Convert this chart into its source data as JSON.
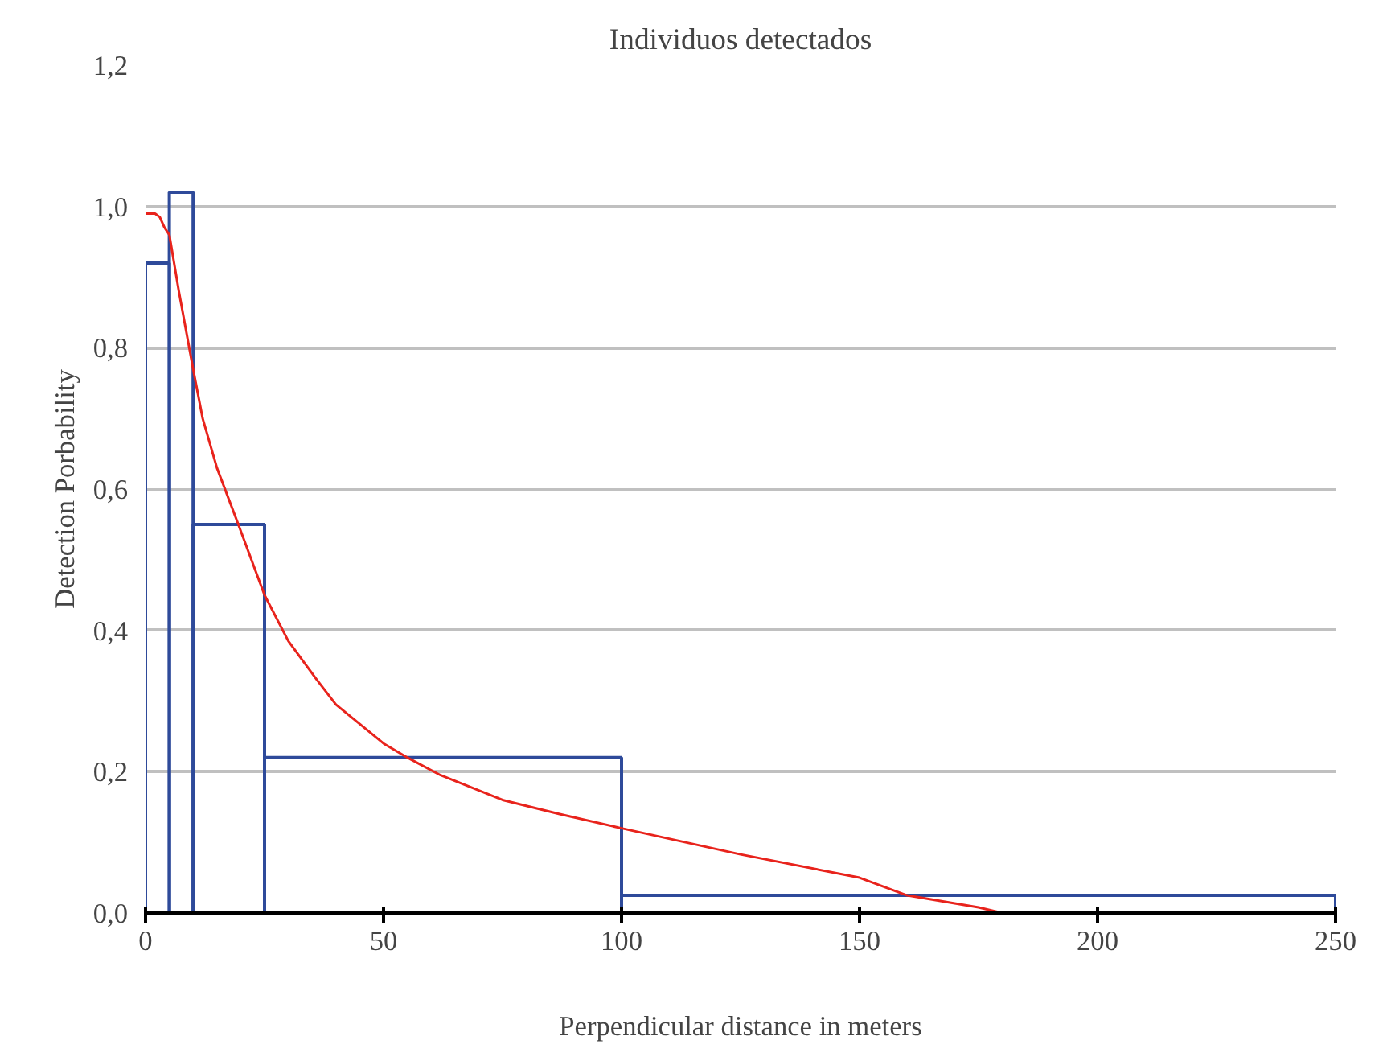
{
  "chart_data": {
    "type": "histogram",
    "title": "Individuos detectados",
    "xlabel": "Perpendicular distance in meters",
    "ylabel": "Detection Porbability",
    "xlim": [
      0,
      250
    ],
    "xticks": [
      0,
      50,
      100,
      150,
      200,
      250
    ],
    "ylim": [
      0,
      1.2
    ],
    "yticks": [
      {
        "value": 0,
        "label": "0,0"
      },
      {
        "value": 0.2,
        "label": "0,2"
      },
      {
        "value": 0.4,
        "label": "0,4"
      },
      {
        "value": 0.6,
        "label": "0,6"
      },
      {
        "value": 0.8,
        "label": "0,8"
      },
      {
        "value": 1.0,
        "label": "1,0"
      },
      {
        "value": 1.2,
        "label": "1,2"
      }
    ],
    "grid": "y",
    "series": [
      {
        "color": "#2e4a9a",
        "bins": [
          0,
          5,
          10,
          25,
          100,
          250
        ],
        "values": [
          0.92,
          1.02,
          0.55,
          0.22,
          0.025
        ]
      },
      {
        "type": "line",
        "color": "#e8231c",
        "x": [
          0,
          2,
          3,
          4,
          5,
          7,
          10,
          12,
          15,
          19.5,
          25,
          30,
          36,
          40,
          50,
          55,
          62,
          75,
          87,
          100,
          125,
          150,
          160,
          175,
          180
        ],
        "values": [
          0.99,
          0.99,
          0.985,
          0.97,
          0.96,
          0.88,
          0.77,
          0.7,
          0.63,
          0.55,
          0.45,
          0.385,
          0.33,
          0.295,
          0.24,
          0.22,
          0.195,
          0.16,
          0.14,
          0.12,
          0.083,
          0.05,
          0.025,
          0.008,
          0
        ]
      }
    ]
  }
}
